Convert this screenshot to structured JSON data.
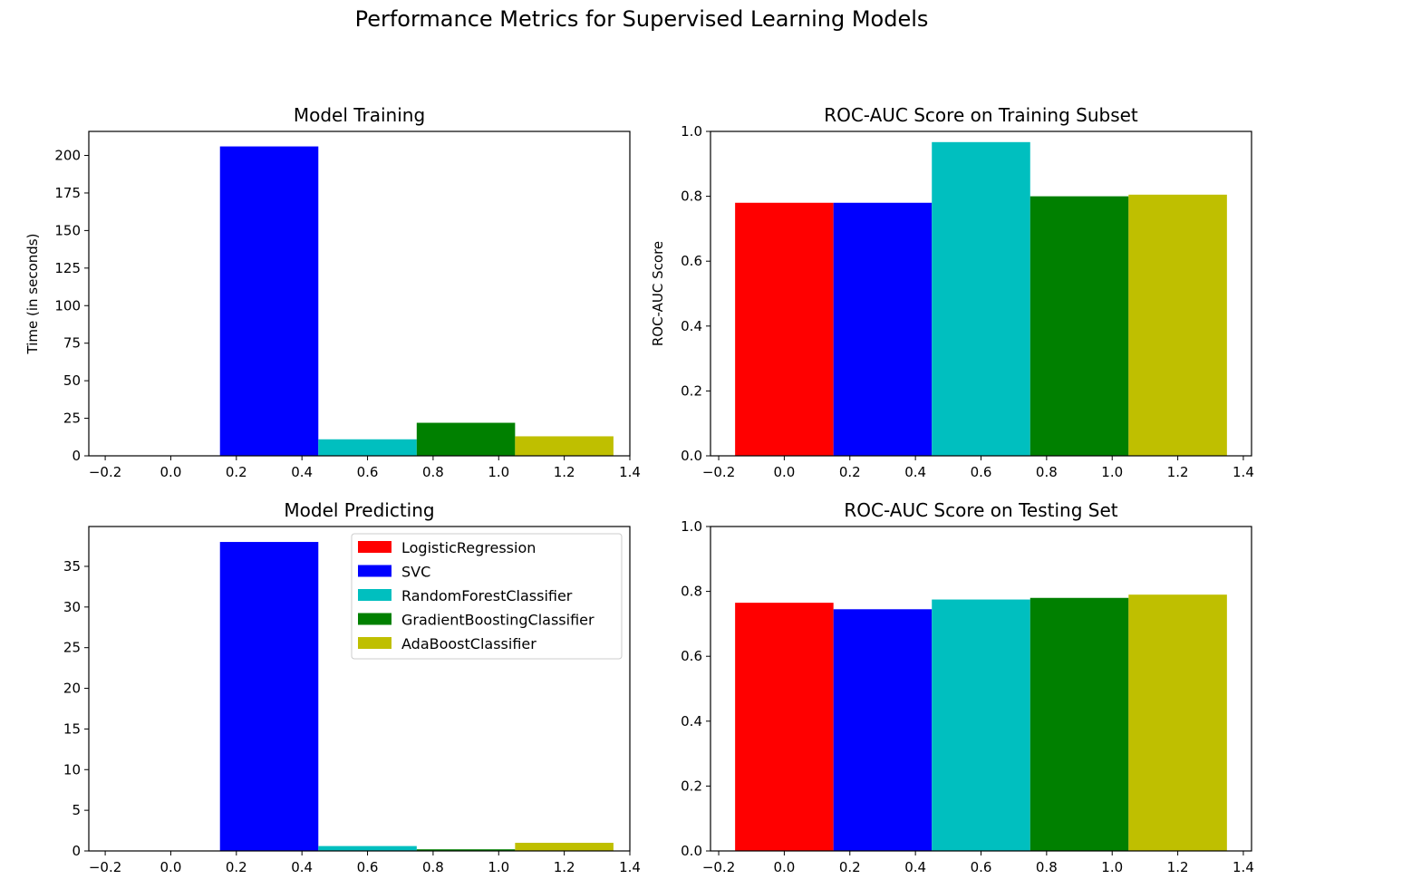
{
  "figure": {
    "suptitle": "Performance Metrics for Supervised Learning Models"
  },
  "legend": {
    "placement": "upper right of Model Predicting",
    "entries": [
      {
        "label": "LogisticRegression",
        "color": "#ff0000"
      },
      {
        "label": "SVC",
        "color": "#0000ff"
      },
      {
        "label": "RandomForestClassifier",
        "color": "#00bfbf"
      },
      {
        "label": "GradientBoostingClassifier",
        "color": "#008000"
      },
      {
        "label": "AdaBoostClassifier",
        "color": "#bfbf00"
      }
    ]
  },
  "chart_data": [
    {
      "type": "bar",
      "title": "Model Training",
      "xlabel": "",
      "ylabel": "Time (in seconds)",
      "xlim": [
        -0.25,
        1.4
      ],
      "ylim": [
        0,
        216
      ],
      "xticks": [
        -0.2,
        0.0,
        0.2,
        0.4,
        0.6,
        0.8,
        1.0,
        1.2,
        1.4
      ],
      "xtick_labels": [
        "−0.2",
        "0.0",
        "0.2",
        "0.4",
        "0.6",
        "0.8",
        "1.0",
        "1.2",
        "1.4"
      ],
      "yticks": [
        0,
        25,
        50,
        75,
        100,
        125,
        150,
        175,
        200
      ],
      "ytick_labels": [
        "0",
        "25",
        "50",
        "75",
        "100",
        "125",
        "150",
        "175",
        "200"
      ],
      "bar_width": 0.3,
      "bars": [
        {
          "series": "LogisticRegression",
          "x": 0.0,
          "value": 0.1
        },
        {
          "series": "SVC",
          "x": 0.3,
          "value": 206
        },
        {
          "series": "RandomForestClassifier",
          "x": 0.6,
          "value": 11
        },
        {
          "series": "GradientBoostingClassifier",
          "x": 0.9,
          "value": 22
        },
        {
          "series": "AdaBoostClassifier",
          "x": 1.2,
          "value": 13
        }
      ]
    },
    {
      "type": "bar",
      "title": "ROC-AUC Score on Training Subset",
      "xlabel": "",
      "ylabel": "ROC-AUC Score",
      "xlim": [
        -0.225,
        1.425
      ],
      "ylim": [
        0,
        1.0
      ],
      "xticks": [
        -0.2,
        0.0,
        0.2,
        0.4,
        0.6,
        0.8,
        1.0,
        1.2,
        1.4
      ],
      "xtick_labels": [
        "−0.2",
        "0.0",
        "0.2",
        "0.4",
        "0.6",
        "0.8",
        "1.0",
        "1.2",
        "1.4"
      ],
      "yticks": [
        0.0,
        0.2,
        0.4,
        0.6,
        0.8,
        1.0
      ],
      "ytick_labels": [
        "0.0",
        "0.2",
        "0.4",
        "0.6",
        "0.8",
        "1.0"
      ],
      "bar_width": 0.3,
      "bars": [
        {
          "series": "LogisticRegression",
          "x": 0.0,
          "value": 0.78
        },
        {
          "series": "SVC",
          "x": 0.3,
          "value": 0.78
        },
        {
          "series": "RandomForestClassifier",
          "x": 0.6,
          "value": 0.967
        },
        {
          "series": "GradientBoostingClassifier",
          "x": 0.9,
          "value": 0.8
        },
        {
          "series": "AdaBoostClassifier",
          "x": 1.2,
          "value": 0.805
        }
      ]
    },
    {
      "type": "bar",
      "title": "Model Predicting",
      "xlabel": "",
      "ylabel": "",
      "xlim": [
        -0.25,
        1.4
      ],
      "ylim": [
        0,
        39.9
      ],
      "xticks": [
        -0.2,
        0.0,
        0.2,
        0.4,
        0.6,
        0.8,
        1.0,
        1.2,
        1.4
      ],
      "xtick_labels": [
        "−0.2",
        "0.0",
        "0.2",
        "0.4",
        "0.6",
        "0.8",
        "1.0",
        "1.2",
        "1.4"
      ],
      "yticks": [
        0,
        5,
        10,
        15,
        20,
        25,
        30,
        35
      ],
      "ytick_labels": [
        "0",
        "5",
        "10",
        "15",
        "20",
        "25",
        "30",
        "35"
      ],
      "bar_width": 0.3,
      "bars": [
        {
          "series": "LogisticRegression",
          "x": 0.0,
          "value": 0.05
        },
        {
          "series": "SVC",
          "x": 0.3,
          "value": 38
        },
        {
          "series": "RandomForestClassifier",
          "x": 0.6,
          "value": 0.6
        },
        {
          "series": "GradientBoostingClassifier",
          "x": 0.9,
          "value": 0.2
        },
        {
          "series": "AdaBoostClassifier",
          "x": 1.2,
          "value": 1.0
        }
      ]
    },
    {
      "type": "bar",
      "title": "ROC-AUC Score on Testing Set",
      "xlabel": "",
      "ylabel": "",
      "xlim": [
        -0.225,
        1.425
      ],
      "ylim": [
        0,
        1.0
      ],
      "xticks": [
        -0.2,
        0.0,
        0.2,
        0.4,
        0.6,
        0.8,
        1.0,
        1.2,
        1.4
      ],
      "xtick_labels": [
        "−0.2",
        "0.0",
        "0.2",
        "0.4",
        "0.6",
        "0.8",
        "1.0",
        "1.2",
        "1.4"
      ],
      "yticks": [
        0.0,
        0.2,
        0.4,
        0.6,
        0.8,
        1.0
      ],
      "ytick_labels": [
        "0.0",
        "0.2",
        "0.4",
        "0.6",
        "0.8",
        "1.0"
      ],
      "bar_width": 0.3,
      "bars": [
        {
          "series": "LogisticRegression",
          "x": 0.0,
          "value": 0.765
        },
        {
          "series": "SVC",
          "x": 0.3,
          "value": 0.745
        },
        {
          "series": "RandomForestClassifier",
          "x": 0.6,
          "value": 0.775
        },
        {
          "series": "GradientBoostingClassifier",
          "x": 0.9,
          "value": 0.78
        },
        {
          "series": "AdaBoostClassifier",
          "x": 1.2,
          "value": 0.79
        }
      ]
    }
  ]
}
